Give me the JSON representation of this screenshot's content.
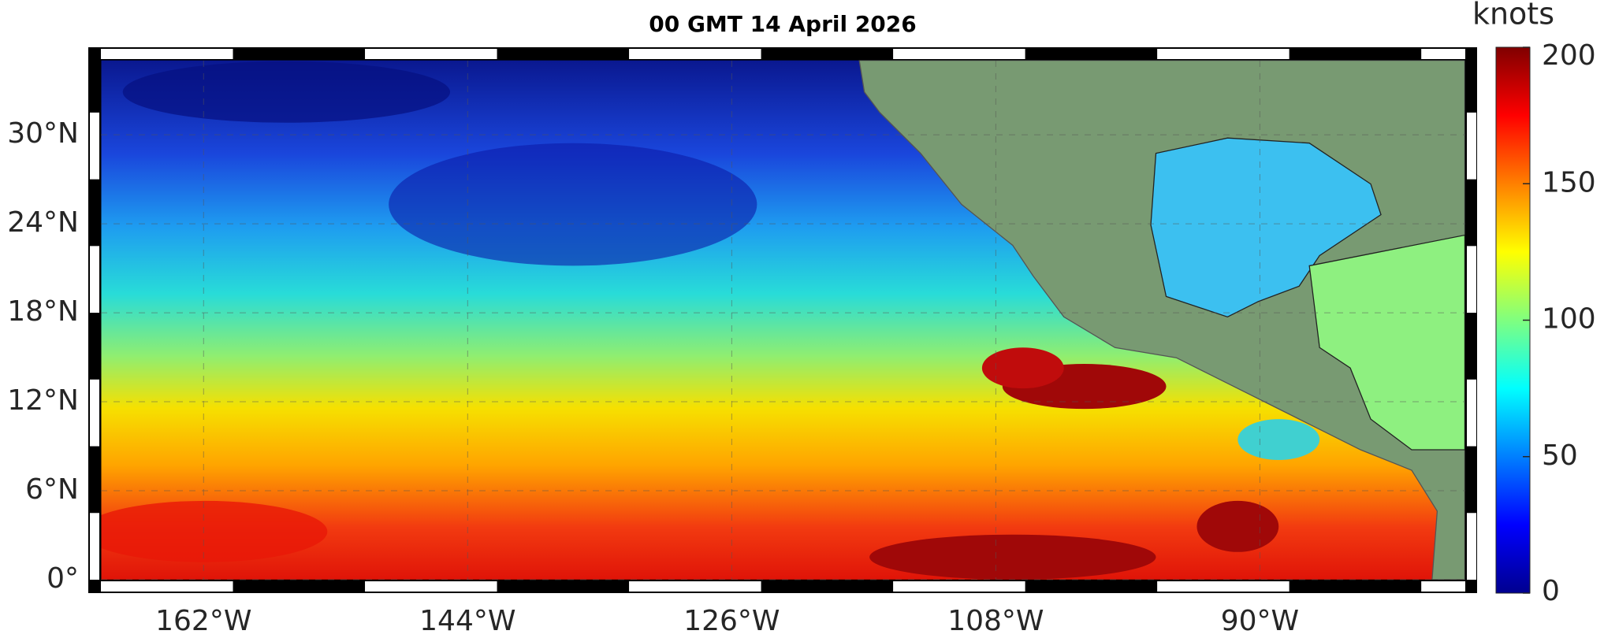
{
  "chart_data": {
    "type": "contour",
    "title": "00 GMT 14 April 2026",
    "colorbar_label": "knots",
    "clim": [
      0,
      200
    ],
    "cticks": [
      0,
      50,
      100,
      150,
      200
    ],
    "xlim": [
      -169,
      -76
    ],
    "xticks": [
      {
        "value": -162,
        "label": "162°W"
      },
      {
        "value": -144,
        "label": "144°W"
      },
      {
        "value": -126,
        "label": "126°W"
      },
      {
        "value": -108,
        "label": "108°W"
      },
      {
        "value": -90,
        "label": "90°W"
      }
    ],
    "ylim": [
      0,
      35
    ],
    "yticks": [
      {
        "value": 0,
        "label": "0°"
      },
      {
        "value": 6,
        "label": "6°N"
      },
      {
        "value": 12,
        "label": "12°N"
      },
      {
        "value": 18,
        "label": "18°N"
      },
      {
        "value": 24,
        "label": "24°N"
      },
      {
        "value": 30,
        "label": "30°N"
      }
    ]
  }
}
